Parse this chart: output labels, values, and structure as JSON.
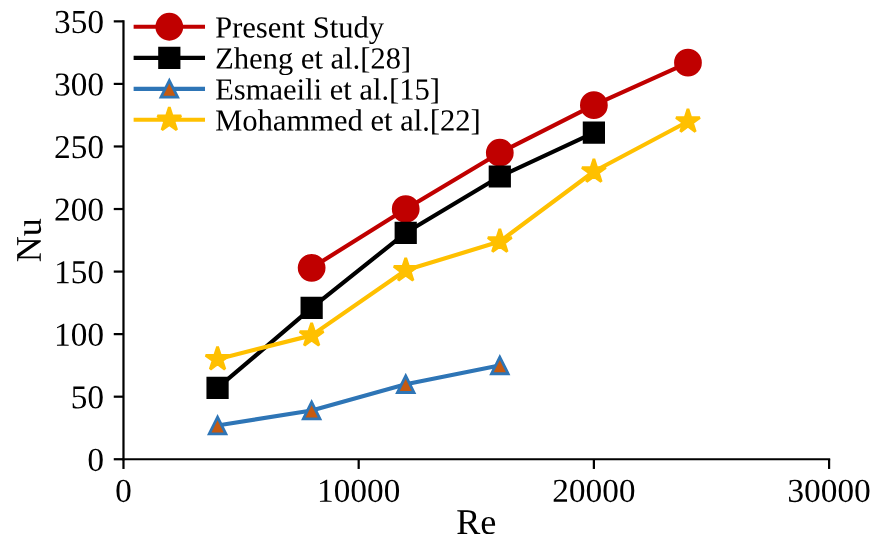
{
  "chart_data": {
    "type": "line",
    "xlabel": "Re",
    "ylabel": "Nu",
    "xlim": [
      0,
      30000
    ],
    "xticks": [
      0,
      10000,
      20000,
      30000
    ],
    "ylim": [
      0,
      350
    ],
    "yticks": [
      0,
      50,
      100,
      150,
      200,
      250,
      300,
      350
    ],
    "grid": false,
    "legend": "top left",
    "series": [
      {
        "name": "Present Study",
        "color": "#c00000",
        "marker": "circle",
        "x": [
          8000,
          12000,
          16000,
          20000,
          24000
        ],
        "values": [
          153,
          200,
          245,
          283,
          317
        ]
      },
      {
        "name": "Zheng et al.[28]",
        "color": "#000000",
        "marker": "square",
        "x": [
          4000,
          8000,
          12000,
          16000,
          20000
        ],
        "values": [
          57,
          121,
          181,
          226,
          261
        ]
      },
      {
        "name": "Esmaeili et al.[15]",
        "color": "#2e75b6",
        "marker": "triangle",
        "x": [
          4000,
          8000,
          12000,
          16000
        ],
        "values": [
          27,
          39,
          60,
          75
        ]
      },
      {
        "name": "Mohammed et al.[22]",
        "color": "#ffc000",
        "marker": "star",
        "x": [
          4000,
          8000,
          12000,
          16000,
          20000,
          24000
        ],
        "values": [
          80,
          99,
          151,
          174,
          230,
          270
        ]
      }
    ]
  }
}
